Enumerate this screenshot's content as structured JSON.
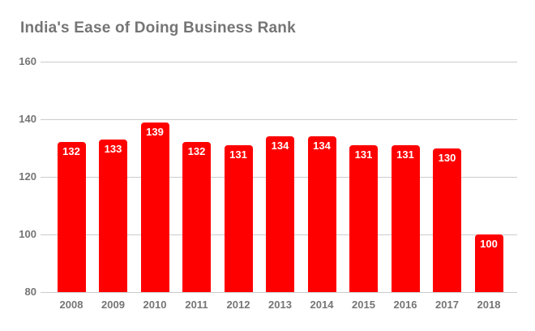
{
  "chart_data": {
    "type": "bar",
    "title": "India's Ease of Doing Business Rank",
    "categories": [
      "2008",
      "2009",
      "2010",
      "2011",
      "2012",
      "2013",
      "2014",
      "2015",
      "2016",
      "2017",
      "2018"
    ],
    "values": [
      132,
      133,
      139,
      132,
      131,
      134,
      134,
      131,
      131,
      130,
      100
    ],
    "xlabel": "",
    "ylabel": "",
    "ylim": [
      80,
      160
    ],
    "yticks": [
      160,
      140,
      120,
      100,
      80
    ],
    "grid": true,
    "legend_position": "none",
    "colors": {
      "bar": "#ff0000",
      "bar_value_label": "#ffffff",
      "title_text": "#757575",
      "axis_text": "#757575",
      "gridline": "#cccccc"
    }
  }
}
